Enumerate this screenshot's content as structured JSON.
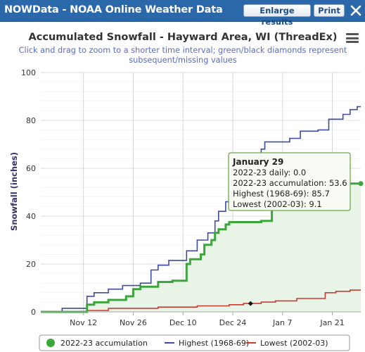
{
  "window": {
    "title": "NOWData - NOAA Online Weather Data",
    "enlarge_label": "Enlarge results",
    "print_label": "Print",
    "close_icon": "close-icon",
    "menu_icon": "hamburger-menu-icon"
  },
  "chart_data": {
    "type": "line",
    "title": "Accumulated Snowfall - Hayward Area, WI (ThreadEx)",
    "subtitle": "Click and drag to zoom to a shorter time interval; green/black diamonds represent subsequent/missing values",
    "ylabel": "Snowfall (inches)",
    "xlabel": "",
    "ylim": [
      0,
      100
    ],
    "xlim": [
      "Oct 31",
      "Jan 29"
    ],
    "y_ticks": [
      0,
      20,
      40,
      60,
      80,
      100
    ],
    "x_ticks": [
      "Nov 12",
      "Nov 26",
      "Dec 10",
      "Dec 24",
      "Jan 7",
      "Jan 21"
    ],
    "grid": true,
    "legend_position": "bottom",
    "series": [
      {
        "name": "2022-23 accumulation",
        "color": "#3ca63c",
        "points": [
          [
            "Oct 31",
            0
          ],
          [
            "Nov 13",
            0
          ],
          [
            "Nov 13",
            3
          ],
          [
            "Nov 15",
            3
          ],
          [
            "Nov 15",
            4
          ],
          [
            "Nov 19",
            4
          ],
          [
            "Nov 19",
            5
          ],
          [
            "Nov 24",
            5
          ],
          [
            "Nov 24",
            6.5
          ],
          [
            "Nov 26",
            6.5
          ],
          [
            "Nov 26",
            9.5
          ],
          [
            "Nov 28",
            9.5
          ],
          [
            "Nov 28",
            10.5
          ],
          [
            "Dec 3",
            10.5
          ],
          [
            "Dec 3",
            12.5
          ],
          [
            "Dec 7",
            12.5
          ],
          [
            "Dec 7",
            13
          ],
          [
            "Dec 11",
            13
          ],
          [
            "Dec 11",
            20
          ],
          [
            "Dec 12",
            20
          ],
          [
            "Dec 12",
            22
          ],
          [
            "Dec 15",
            22
          ],
          [
            "Dec 15",
            24
          ],
          [
            "Dec 16",
            24
          ],
          [
            "Dec 16",
            28
          ],
          [
            "Dec 18",
            28
          ],
          [
            "Dec 18",
            30
          ],
          [
            "Dec 19",
            30
          ],
          [
            "Dec 19",
            33
          ],
          [
            "Dec 20",
            33
          ],
          [
            "Dec 20",
            34.5
          ],
          [
            "Dec 22",
            34.5
          ],
          [
            "Dec 22",
            36.5
          ],
          [
            "Dec 23",
            36.5
          ],
          [
            "Dec 23",
            37.5
          ],
          [
            "Jan 1",
            37.5
          ],
          [
            "Jan 1",
            38
          ],
          [
            "Jan 4",
            38
          ],
          [
            "Jan 4",
            44
          ],
          [
            "Jan 9",
            44
          ],
          [
            "Jan 9",
            46
          ],
          [
            "Jan 12",
            46
          ],
          [
            "Jan 12",
            49
          ],
          [
            "Jan 20",
            49
          ],
          [
            "Jan 20",
            53
          ],
          [
            "Jan 24",
            53
          ],
          [
            "Jan 24",
            53.6
          ],
          [
            "Jan 29",
            53.6
          ]
        ]
      },
      {
        "name": "Highest (1968-69)",
        "color": "#3d4c9e",
        "points": [
          [
            "Oct 31",
            0
          ],
          [
            "Nov 6",
            0
          ],
          [
            "Nov 6",
            1.5
          ],
          [
            "Nov 13",
            1.5
          ],
          [
            "Nov 13",
            6.5
          ],
          [
            "Nov 15",
            6.5
          ],
          [
            "Nov 15",
            8
          ],
          [
            "Nov 19",
            8
          ],
          [
            "Nov 19",
            9.5
          ],
          [
            "Nov 23",
            9.5
          ],
          [
            "Nov 23",
            11
          ],
          [
            "Nov 28",
            11
          ],
          [
            "Nov 28",
            12
          ],
          [
            "Dec 1",
            12
          ],
          [
            "Dec 1",
            17.5
          ],
          [
            "Dec 3",
            17.5
          ],
          [
            "Dec 3",
            19.5
          ],
          [
            "Dec 6",
            19.5
          ],
          [
            "Dec 6",
            21.5
          ],
          [
            "Dec 11",
            21.5
          ],
          [
            "Dec 11",
            25.5
          ],
          [
            "Dec 14",
            25.5
          ],
          [
            "Dec 14",
            30
          ],
          [
            "Dec 17",
            30
          ],
          [
            "Dec 17",
            33
          ],
          [
            "Dec 19",
            33
          ],
          [
            "Dec 19",
            38
          ],
          [
            "Dec 20",
            38
          ],
          [
            "Dec 20",
            42
          ],
          [
            "Dec 22",
            42
          ],
          [
            "Dec 22",
            46
          ],
          [
            "Dec 23",
            46
          ],
          [
            "Dec 23",
            48
          ],
          [
            "Dec 24",
            48
          ],
          [
            "Dec 24",
            50
          ],
          [
            "Dec 25",
            50
          ],
          [
            "Dec 25",
            52
          ],
          [
            "Dec 26",
            52
          ],
          [
            "Dec 26",
            55
          ],
          [
            "Dec 27",
            55
          ],
          [
            "Dec 27",
            57.5
          ],
          [
            "Dec 28",
            57.5
          ],
          [
            "Dec 28",
            60.5
          ],
          [
            "Dec 29",
            60.5
          ],
          [
            "Dec 29",
            62
          ],
          [
            "Dec 31",
            62
          ],
          [
            "Dec 31",
            64
          ],
          [
            "Jan 1",
            64
          ],
          [
            "Jan 1",
            68
          ],
          [
            "Jan 2",
            68
          ],
          [
            "Jan 2",
            71
          ],
          [
            "Jan 9",
            71
          ],
          [
            "Jan 9",
            72.5
          ],
          [
            "Jan 12",
            72.5
          ],
          [
            "Jan 12",
            75.5
          ],
          [
            "Jan 17",
            75.5
          ],
          [
            "Jan 17",
            76
          ],
          [
            "Jan 20",
            76
          ],
          [
            "Jan 20",
            80.5
          ],
          [
            "Jan 24",
            80.5
          ],
          [
            "Jan 24",
            82.5
          ],
          [
            "Jan 26",
            82.5
          ],
          [
            "Jan 26",
            84.5
          ],
          [
            "Jan 28",
            84.5
          ],
          [
            "Jan 28",
            85.7
          ],
          [
            "Jan 29",
            85.7
          ]
        ]
      },
      {
        "name": "Lowest (2002-03)",
        "color": "#cc3b33",
        "points": [
          [
            "Oct 31",
            0
          ],
          [
            "Nov 13",
            0
          ],
          [
            "Nov 13",
            0.6
          ],
          [
            "Nov 19",
            0.6
          ],
          [
            "Nov 19",
            1.5
          ],
          [
            "Dec 3",
            1.5
          ],
          [
            "Dec 3",
            2
          ],
          [
            "Dec 14",
            2
          ],
          [
            "Dec 14",
            2.5
          ],
          [
            "Dec 23",
            2.5
          ],
          [
            "Dec 23",
            3
          ],
          [
            "Dec 27",
            3
          ],
          [
            "Dec 27",
            3.5
          ],
          [
            "Jan 1",
            3.5
          ],
          [
            "Jan 1",
            4.1
          ],
          [
            "Jan 5",
            4.1
          ],
          [
            "Jan 5",
            4.6
          ],
          [
            "Jan 11",
            4.6
          ],
          [
            "Jan 11",
            5.6
          ],
          [
            "Jan 19",
            5.6
          ],
          [
            "Jan 19",
            8
          ],
          [
            "Jan 22",
            8
          ],
          [
            "Jan 22",
            8.6
          ],
          [
            "Jan 26",
            8.6
          ],
          [
            "Jan 26",
            9.1
          ],
          [
            "Jan 29",
            9.1
          ]
        ]
      }
    ],
    "missing_marker": {
      "date": "Dec 29",
      "value": 3.5
    },
    "tooltip": {
      "title": "January 29",
      "lines": [
        "2022-23 daily: 0.0",
        "2022-23 accumulation: 53.6",
        "Highest (1968-69): 85.7",
        "Lowest (2002-03): 9.1"
      ]
    }
  }
}
